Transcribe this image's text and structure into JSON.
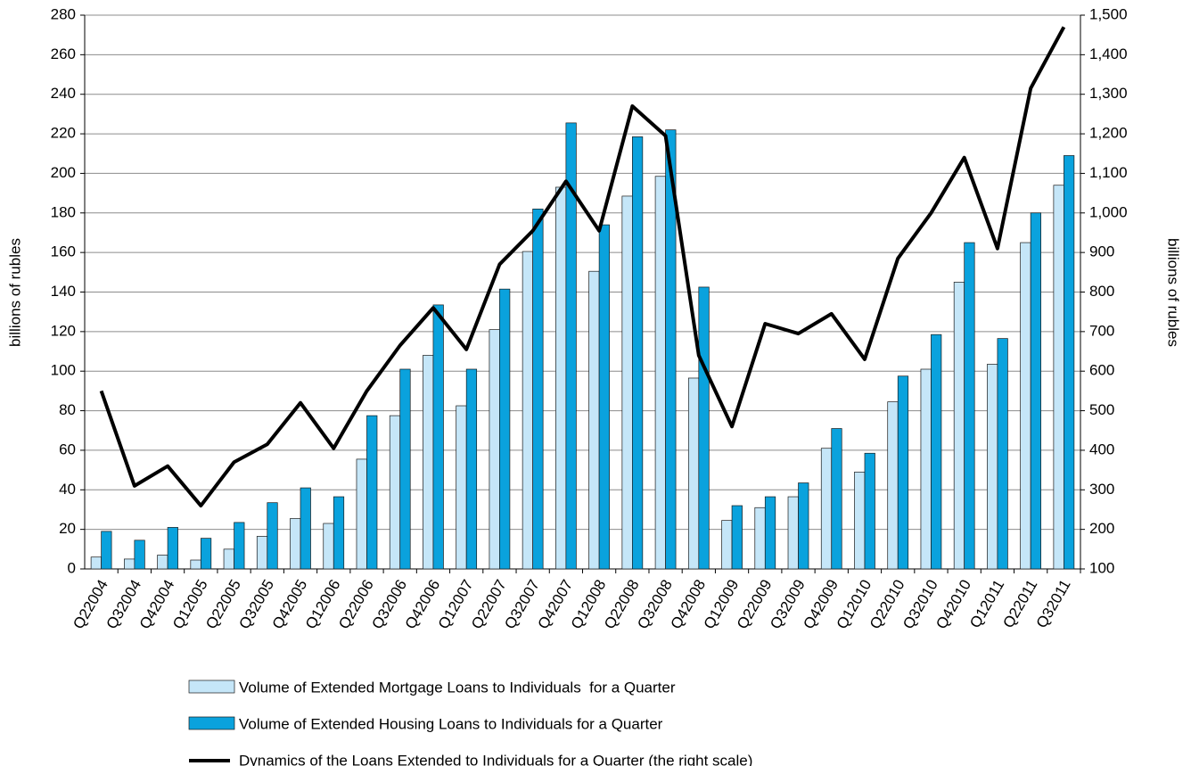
{
  "chart_data": {
    "type": "bar",
    "categories": [
      "Q22004",
      "Q32004",
      "Q42004",
      "Q12005",
      "Q22005",
      "Q32005",
      "Q42005",
      "Q12006",
      "Q22006",
      "Q32006",
      "Q42006",
      "Q12007",
      "Q22007",
      "Q32007",
      "Q42007",
      "Q12008",
      "Q22008",
      "Q32008",
      "Q42008",
      "Q12009",
      "Q22009",
      "Q32009",
      "Q42009",
      "Q12010",
      "Q22010",
      "Q32010",
      "Q42010",
      "Q12011",
      "Q22011",
      "Q32011"
    ],
    "series": [
      {
        "name": "Volume of Extended Mortgage Loans to Individuals  for a Quarter",
        "color": "#c5e6f8",
        "type": "bar",
        "values": [
          6,
          5,
          7,
          4.5,
          10,
          16.5,
          25.5,
          23,
          55.5,
          77.5,
          108,
          82.5,
          121,
          160.5,
          193,
          150.5,
          188.5,
          198.5,
          96.5,
          24.5,
          31,
          36.5,
          61,
          49,
          84.5,
          101,
          145,
          103.5,
          165,
          194
        ]
      },
      {
        "name": "Volume of Extended Housing Loans to Individuals for a Quarter",
        "color": "#0aa2dd",
        "type": "bar",
        "values": [
          19,
          14.5,
          21,
          15.5,
          23.5,
          33.5,
          41,
          36.5,
          77.5,
          101,
          133.5,
          101,
          141.5,
          182,
          225.5,
          174,
          218.5,
          222,
          142.5,
          32,
          36.5,
          43.5,
          71,
          58.5,
          97.5,
          118.5,
          165,
          116.5,
          180,
          209
        ]
      },
      {
        "name": "Dynamics of the Loans Extended to Individuals for a Quarter (the right scale)",
        "color": "#000000",
        "type": "line",
        "axis": "y2",
        "values": [
          550,
          310,
          360,
          260,
          370,
          415,
          520,
          405,
          550,
          665,
          760,
          655,
          870,
          955,
          1080,
          955,
          1270,
          1195,
          640,
          460,
          720,
          695,
          745,
          630,
          885,
          1000,
          1140,
          910,
          1315,
          1470
        ]
      }
    ],
    "y_label": "billions of rubles",
    "y2_label": "billions of rubles",
    "ylim": [
      0,
      280
    ],
    "yticks": [
      0,
      20,
      40,
      60,
      80,
      100,
      120,
      140,
      160,
      180,
      200,
      220,
      240,
      260,
      280
    ],
    "y2lim": [
      100,
      1500
    ],
    "y2ticks": [
      100,
      200,
      300,
      400,
      500,
      600,
      700,
      800,
      900,
      {
        "value": 1000,
        "label": "1,000"
      },
      {
        "value": 1100,
        "label": "1,100"
      },
      {
        "value": 1200,
        "label": "1,200"
      },
      {
        "value": 1300,
        "label": "1,300"
      },
      {
        "value": 1400,
        "label": "1,400"
      },
      {
        "value": 1500,
        "label": "1,500"
      }
    ],
    "grid": true
  }
}
